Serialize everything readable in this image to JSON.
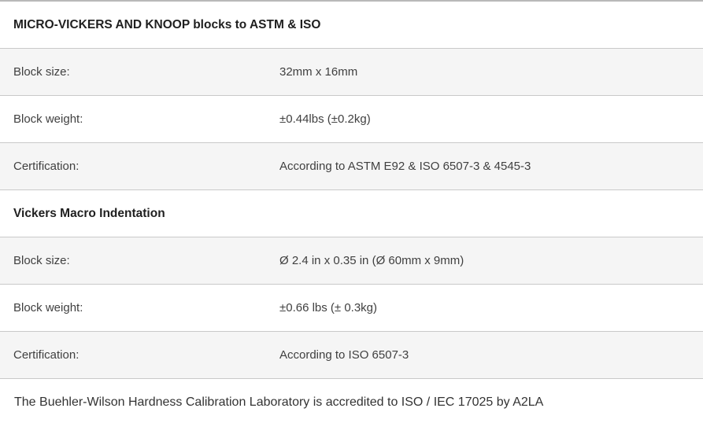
{
  "colors": {
    "row_alt_bg": "#f5f5f5",
    "divider": "#c9c9c9",
    "top_border": "#b9b9b9",
    "heading_text": "#1f1f1f",
    "body_text": "#404040"
  },
  "table": {
    "sections": [
      {
        "title": "MICRO-VICKERS AND KNOOP blocks to ASTM & ISO",
        "rows": [
          {
            "label": "Block size:",
            "value": "32mm x 16mm"
          },
          {
            "label": "Block weight:",
            "value": "±0.44lbs (±0.2kg)"
          },
          {
            "label": "Certification:",
            "value": "According to ASTM E92 & ISO 6507-3 & 4545-3"
          }
        ]
      },
      {
        "title": "Vickers Macro Indentation",
        "rows": [
          {
            "label": "Block size:",
            "value": "Ø 2.4 in x 0.35 in (Ø 60mm x 9mm)"
          },
          {
            "label": "Block weight:",
            "value": "±0.66 lbs (± 0.3kg)"
          },
          {
            "label": "Certification:",
            "value": "According to ISO 6507-3"
          }
        ]
      }
    ]
  },
  "footer": {
    "note": "The Buehler-Wilson Hardness Calibration Laboratory is accredited to ISO / IEC 17025 by A2LA"
  }
}
